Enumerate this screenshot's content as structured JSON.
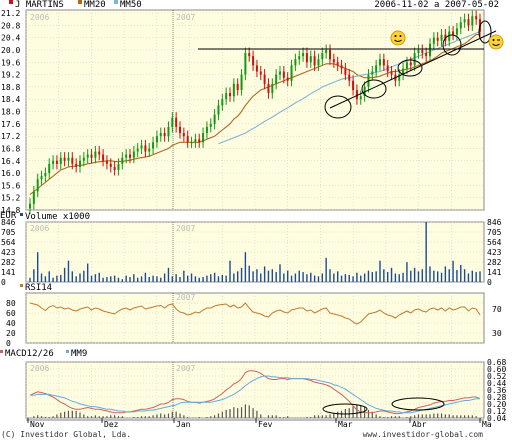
{
  "colors": {
    "panel_bg": "#fffde0",
    "grid": "#c8c8c8",
    "candle_up": "#119911",
    "candle_down": "#cc1111",
    "mm20": "#b5651d",
    "mm50": "#7fb5d5",
    "volume": "#1a4a9a",
    "rsi": "#c07a30",
    "macd": "#d06060",
    "macd_signal": "#66aadd",
    "macd_hist": "#555555",
    "markup": "#000000"
  },
  "chart_data": [
    {
      "type": "candlestick",
      "id": "price",
      "legend": [
        "J MARTINS",
        "MM20",
        "MM50"
      ],
      "date_range": "2006-11-02 a 2007-05-02",
      "year_labels": [
        "2006",
        "2007"
      ],
      "ylim": [
        14.8,
        21.3
      ],
      "ytick_labels": [
        "14.8",
        "15.2",
        "15.6",
        "16.0",
        "16.4",
        "16.8",
        "17.2",
        "17.6",
        "18.0",
        "18.4",
        "18.8",
        "19.2",
        "19.6",
        "20.0",
        "20.4",
        "20.8",
        "21.2"
      ],
      "close": [
        15.0,
        15.4,
        15.8,
        15.9,
        16.0,
        16.3,
        16.4,
        16.3,
        16.5,
        16.4,
        16.5,
        16.3,
        16.2,
        16.4,
        16.5,
        16.6,
        16.5,
        16.7,
        16.6,
        16.4,
        16.3,
        16.2,
        16.1,
        16.3,
        16.5,
        16.6,
        16.5,
        16.7,
        16.8,
        16.9,
        16.7,
        16.8,
        17.0,
        17.2,
        17.3,
        17.2,
        17.5,
        17.8,
        17.5,
        17.3,
        17.2,
        17.0,
        17.0,
        17.1,
        17.0,
        17.3,
        17.5,
        17.6,
        17.9,
        18.2,
        18.4,
        18.6,
        18.5,
        18.9,
        18.7,
        19.2,
        19.9,
        19.8,
        19.5,
        19.3,
        19.2,
        18.9,
        18.6,
        18.9,
        19.2,
        19.3,
        19.1,
        19.0,
        19.5,
        19.7,
        19.8,
        19.9,
        19.6,
        19.8,
        19.5,
        19.7,
        19.9,
        20.0,
        19.7,
        19.6,
        19.5,
        19.4,
        19.2,
        19.0,
        18.7,
        18.4,
        18.5,
        18.8,
        19.2,
        19.3,
        19.5,
        19.7,
        19.5,
        19.3,
        19.2,
        19.0,
        19.2,
        19.4,
        19.6,
        19.5,
        19.9,
        20.0,
        19.9,
        19.8,
        20.2,
        20.4,
        20.3,
        20.5,
        20.3,
        20.6,
        20.5,
        20.7,
        20.9,
        21.0,
        20.8,
        21.1,
        21.0,
        20.6
      ],
      "mm20": [
        15.3,
        15.4,
        15.5,
        15.6,
        15.7,
        15.8,
        15.9,
        16.0,
        16.1,
        16.15,
        16.2,
        16.22,
        16.23,
        16.25,
        16.27,
        16.3,
        16.32,
        16.35,
        16.37,
        16.38,
        16.4,
        16.4,
        16.38,
        16.37,
        16.38,
        16.4,
        16.42,
        16.45,
        16.48,
        16.5,
        16.52,
        16.55,
        16.6,
        16.65,
        16.7,
        16.75,
        16.8,
        16.9,
        16.95,
        17.0,
        17.0,
        17.0,
        17.0,
        17.0,
        17.0,
        17.05,
        17.1,
        17.15,
        17.2,
        17.3,
        17.4,
        17.5,
        17.6,
        17.75,
        17.85,
        18.0,
        18.2,
        18.35,
        18.5,
        18.6,
        18.7,
        18.75,
        18.8,
        18.85,
        18.9,
        18.95,
        19.0,
        19.05,
        19.1,
        19.15,
        19.2,
        19.25,
        19.3,
        19.35,
        19.4,
        19.45,
        19.5,
        19.55,
        19.55,
        19.55,
        19.5,
        19.45,
        19.4,
        19.35,
        19.3,
        19.2,
        19.15,
        19.1,
        19.1,
        19.1,
        19.12,
        19.15,
        19.2,
        19.25,
        19.3,
        19.3,
        19.32,
        19.35,
        19.38,
        19.4,
        19.45,
        19.5,
        19.55,
        19.6,
        19.65,
        19.72,
        19.8,
        19.9,
        19.95,
        20.0,
        20.05,
        20.1,
        20.15,
        20.2,
        20.3,
        20.4,
        20.5,
        20.5
      ],
      "mm50_start_index": 49,
      "mm50": [
        16.95,
        17.0,
        17.05,
        17.1,
        17.15,
        17.2,
        17.25,
        17.3,
        17.38,
        17.45,
        17.52,
        17.6,
        17.68,
        17.75,
        17.82,
        17.9,
        17.98,
        18.05,
        18.12,
        18.2,
        18.28,
        18.35,
        18.42,
        18.5,
        18.58,
        18.65,
        18.72,
        18.8,
        18.85,
        18.9,
        18.95,
        19.0,
        19.05,
        19.08,
        19.1,
        19.12,
        19.15,
        19.18,
        19.2,
        19.22,
        19.25,
        19.28,
        19.3,
        19.35,
        19.4,
        19.45,
        19.5,
        19.55,
        19.6,
        19.65,
        19.7,
        19.75,
        19.8,
        19.85,
        19.9,
        19.95,
        20.0,
        20.05,
        20.1,
        20.15,
        20.2,
        20.25,
        20.3,
        20.35,
        20.4,
        20.45,
        20.5,
        20.55,
        20.6
      ]
    },
    {
      "type": "bar",
      "id": "volume",
      "legend": [
        "Volume x1000"
      ],
      "year_labels": [
        "2006",
        "2007"
      ],
      "ylim": [
        0,
        846
      ],
      "ytick_labels": [
        "0",
        "141",
        "282",
        "423",
        "564",
        "705",
        "846"
      ],
      "values": [
        60,
        180,
        420,
        120,
        80,
        150,
        60,
        90,
        100,
        200,
        300,
        150,
        80,
        120,
        160,
        260,
        90,
        110,
        130,
        60,
        70,
        80,
        90,
        60,
        40,
        90,
        70,
        110,
        60,
        80,
        130,
        70,
        90,
        80,
        60,
        120,
        200,
        80,
        110,
        70,
        160,
        90,
        120,
        80,
        60,
        70,
        90,
        110,
        130,
        80,
        100,
        90,
        300,
        120,
        150,
        200,
        420,
        230,
        150,
        180,
        120,
        220,
        160,
        180,
        140,
        250,
        120,
        160,
        90,
        120,
        160,
        140,
        110,
        130,
        90,
        80,
        120,
        340,
        180,
        120,
        150,
        90,
        110,
        100,
        80,
        130,
        90,
        120,
        160,
        140,
        150,
        300,
        180,
        140,
        200,
        120,
        110,
        130,
        280,
        160,
        200,
        150,
        180,
        846,
        220,
        160,
        150,
        130,
        220,
        180,
        300,
        170,
        240,
        180,
        120,
        160,
        140,
        150
      ]
    },
    {
      "type": "line",
      "id": "rsi",
      "legend": [
        "RSI14"
      ],
      "year_labels": [
        "2006",
        "2007"
      ],
      "ylim": [
        0,
        100
      ],
      "ytick_labels": [
        "0",
        "20",
        "40",
        "60",
        "80"
      ],
      "reference_labels": [
        "70",
        "30"
      ],
      "values": [
        80,
        78,
        76,
        70,
        65,
        72,
        75,
        70,
        72,
        68,
        70,
        66,
        64,
        68,
        70,
        72,
        66,
        70,
        68,
        64,
        62,
        60,
        58,
        64,
        68,
        70,
        66,
        70,
        72,
        74,
        68,
        70,
        72,
        74,
        75,
        70,
        76,
        78,
        68,
        62,
        60,
        56,
        58,
        62,
        60,
        66,
        70,
        70,
        74,
        76,
        77,
        78,
        72,
        76,
        70,
        72,
        80,
        70,
        62,
        60,
        58,
        54,
        52,
        60,
        64,
        66,
        62,
        60,
        66,
        68,
        70,
        70,
        64,
        66,
        60,
        64,
        68,
        70,
        60,
        58,
        56,
        54,
        50,
        48,
        42,
        38,
        42,
        50,
        58,
        60,
        62,
        66,
        60,
        56,
        54,
        50,
        56,
        60,
        64,
        60,
        66,
        68,
        64,
        62,
        68,
        70,
        66,
        70,
        64,
        70,
        66,
        68,
        72,
        72,
        64,
        70,
        68,
        56
      ]
    },
    {
      "type": "line",
      "id": "macd",
      "legend": [
        "MACD12/26",
        "MM9"
      ],
      "year_labels": [
        "2006",
        "2007"
      ],
      "ylim": [
        0.04,
        0.68
      ],
      "ytick_labels": [
        "0.04",
        "0.12",
        "0.20",
        "0.28",
        "0.36",
        "0.44",
        "0.52",
        "0.60",
        "0.68"
      ],
      "xtick_labels": [
        "Nov",
        "Dez",
        "Jan",
        "Fev",
        "Mar",
        "Abr",
        "Ma"
      ],
      "macd": [
        0.3,
        0.32,
        0.34,
        0.33,
        0.32,
        0.3,
        0.28,
        0.25,
        0.22,
        0.2,
        0.17,
        0.15,
        0.14,
        0.14,
        0.15,
        0.16,
        0.15,
        0.14,
        0.14,
        0.13,
        0.12,
        0.11,
        0.1,
        0.1,
        0.1,
        0.11,
        0.11,
        0.12,
        0.13,
        0.14,
        0.14,
        0.15,
        0.16,
        0.18,
        0.2,
        0.2,
        0.22,
        0.25,
        0.26,
        0.26,
        0.25,
        0.23,
        0.22,
        0.22,
        0.21,
        0.22,
        0.23,
        0.24,
        0.26,
        0.29,
        0.32,
        0.36,
        0.39,
        0.43,
        0.45,
        0.49,
        0.56,
        0.58,
        0.58,
        0.57,
        0.55,
        0.52,
        0.49,
        0.48,
        0.48,
        0.49,
        0.49,
        0.48,
        0.49,
        0.49,
        0.49,
        0.49,
        0.48,
        0.47,
        0.45,
        0.44,
        0.43,
        0.42,
        0.4,
        0.37,
        0.34,
        0.31,
        0.27,
        0.23,
        0.18,
        0.13,
        0.11,
        0.1,
        0.1,
        0.1,
        0.11,
        0.12,
        0.12,
        0.11,
        0.1,
        0.09,
        0.09,
        0.1,
        0.11,
        0.12,
        0.14,
        0.16,
        0.17,
        0.18,
        0.19,
        0.21,
        0.22,
        0.23,
        0.23,
        0.24,
        0.24,
        0.25,
        0.26,
        0.27,
        0.27,
        0.28,
        0.28,
        0.26
      ],
      "signal": [
        0.3,
        0.3,
        0.31,
        0.31,
        0.31,
        0.31,
        0.3,
        0.29,
        0.28,
        0.27,
        0.25,
        0.23,
        0.22,
        0.2,
        0.19,
        0.18,
        0.17,
        0.17,
        0.16,
        0.15,
        0.14,
        0.14,
        0.13,
        0.12,
        0.12,
        0.11,
        0.11,
        0.11,
        0.12,
        0.12,
        0.12,
        0.13,
        0.13,
        0.14,
        0.15,
        0.16,
        0.17,
        0.18,
        0.19,
        0.21,
        0.22,
        0.22,
        0.22,
        0.22,
        0.22,
        0.22,
        0.22,
        0.22,
        0.23,
        0.24,
        0.25,
        0.27,
        0.29,
        0.31,
        0.34,
        0.37,
        0.41,
        0.44,
        0.47,
        0.49,
        0.51,
        0.52,
        0.52,
        0.51,
        0.51,
        0.5,
        0.5,
        0.5,
        0.49,
        0.49,
        0.49,
        0.49,
        0.49,
        0.48,
        0.48,
        0.47,
        0.46,
        0.45,
        0.44,
        0.42,
        0.41,
        0.39,
        0.37,
        0.34,
        0.31,
        0.28,
        0.25,
        0.22,
        0.19,
        0.17,
        0.15,
        0.14,
        0.13,
        0.12,
        0.12,
        0.11,
        0.11,
        0.1,
        0.1,
        0.1,
        0.11,
        0.12,
        0.13,
        0.14,
        0.15,
        0.16,
        0.17,
        0.18,
        0.19,
        0.2,
        0.21,
        0.22,
        0.23,
        0.24,
        0.24,
        0.25,
        0.26,
        0.26
      ]
    }
  ],
  "footer": {
    "copyright": "(C) Investidor Global, Lda.",
    "website": "www.investidor-global.com"
  }
}
